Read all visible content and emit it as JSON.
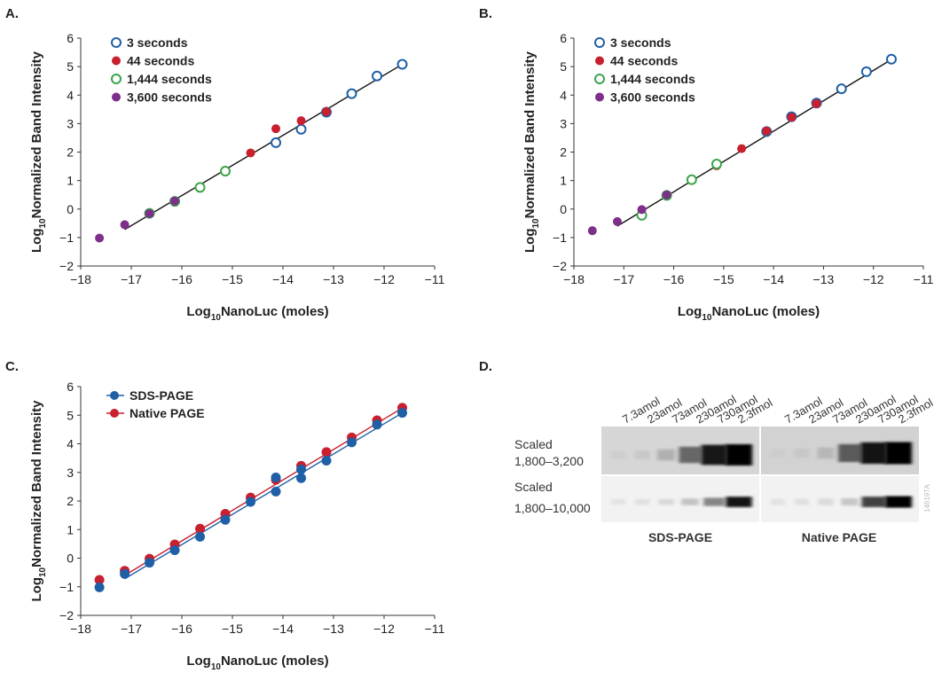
{
  "panels": {
    "A": "A.",
    "B": "B.",
    "C": "C.",
    "D": "D."
  },
  "colors": {
    "blue": "#1f5fa6",
    "red": "#c8202f",
    "green": "#3aa54a",
    "purple": "#7d2f8a",
    "fit_line": "#111111"
  },
  "chart_data": [
    {
      "id": "A",
      "type": "scatter",
      "xlabel": "NanoLuc (moles)",
      "xlabel_prefix": "Log",
      "xlabel_sub": "10",
      "ylabel": "Normalized Band Intensity",
      "ylabel_prefix": "Log",
      "ylabel_sub": "10",
      "xlim": [
        -18,
        -11
      ],
      "ylim": [
        -2,
        6
      ],
      "xticks": [
        -18,
        -17,
        -16,
        -15,
        -14,
        -13,
        -12,
        -11
      ],
      "yticks": [
        -2,
        -1,
        0,
        1,
        2,
        3,
        4,
        5,
        6
      ],
      "xtick_labels": [
        "−18",
        "−17",
        "−16",
        "−15",
        "−14",
        "−13",
        "−12",
        "−11"
      ],
      "ytick_labels": [
        "−2",
        "−1",
        "0",
        "1",
        "2",
        "3",
        "4",
        "5",
        "6"
      ],
      "legend_position": "top-left",
      "fit_lines": [
        {
          "x": [
            -17.13,
            -11.64
          ],
          "y": [
            -0.72,
            5.08
          ],
          "color": "#111111"
        }
      ],
      "series": [
        {
          "name": "3 seconds",
          "marker": "open",
          "color": "#1f5fa6",
          "points": [
            [
              -11.64,
              5.08
            ],
            [
              -12.14,
              4.67
            ],
            [
              -12.64,
              4.05
            ],
            [
              -13.14,
              3.4
            ],
            [
              -13.64,
              2.8
            ],
            [
              -14.14,
              2.33
            ]
          ]
        },
        {
          "name": "44 seconds",
          "marker": "filled",
          "color": "#c8202f",
          "points": [
            [
              -13.14,
              3.42
            ],
            [
              -13.64,
              3.1
            ],
            [
              -14.14,
              2.82
            ],
            [
              -14.64,
              1.97
            ],
            [
              -15.14,
              1.35
            ],
            [
              -15.64,
              0.74
            ]
          ]
        },
        {
          "name": "1,444 seconds",
          "marker": "open",
          "color": "#3aa54a",
          "points": [
            [
              -15.14,
              1.33
            ],
            [
              -15.64,
              0.76
            ],
            [
              -16.14,
              0.27
            ],
            [
              -16.64,
              -0.15
            ]
          ]
        },
        {
          "name": "3,600 seconds",
          "marker": "filled",
          "color": "#7d2f8a",
          "points": [
            [
              -16.14,
              0.28
            ],
            [
              -16.64,
              -0.16
            ],
            [
              -17.13,
              -0.55
            ],
            [
              -17.63,
              -1.02
            ]
          ]
        }
      ]
    },
    {
      "id": "B",
      "type": "scatter",
      "xlabel": "NanoLuc (moles)",
      "xlabel_prefix": "Log",
      "xlabel_sub": "10",
      "ylabel": "Normalized Band Intensity",
      "ylabel_prefix": "Log",
      "ylabel_sub": "10",
      "xlim": [
        -18,
        -11
      ],
      "ylim": [
        -2,
        6
      ],
      "xticks": [
        -18,
        -17,
        -16,
        -15,
        -14,
        -13,
        -12,
        -11
      ],
      "yticks": [
        -2,
        -1,
        0,
        1,
        2,
        3,
        4,
        5,
        6
      ],
      "xtick_labels": [
        "−18",
        "−17",
        "−16",
        "−15",
        "−14",
        "−13",
        "−12",
        "−11"
      ],
      "ytick_labels": [
        "−2",
        "−1",
        "0",
        "1",
        "2",
        "3",
        "4",
        "5",
        "6"
      ],
      "legend_position": "top-left",
      "fit_lines": [
        {
          "x": [
            -17.13,
            -11.64
          ],
          "y": [
            -0.6,
            5.25
          ],
          "color": "#111111"
        }
      ],
      "series": [
        {
          "name": "3 seconds",
          "marker": "open",
          "color": "#1f5fa6",
          "points": [
            [
              -11.64,
              5.26
            ],
            [
              -12.14,
              4.82
            ],
            [
              -12.64,
              4.22
            ],
            [
              -13.14,
              3.72
            ],
            [
              -13.64,
              3.24
            ],
            [
              -14.14,
              2.72
            ]
          ]
        },
        {
          "name": "44 seconds",
          "marker": "filled",
          "color": "#c8202f",
          "points": [
            [
              -13.14,
              3.7
            ],
            [
              -13.64,
              3.22
            ],
            [
              -14.14,
              2.74
            ],
            [
              -14.64,
              2.12
            ],
            [
              -15.14,
              1.52
            ]
          ]
        },
        {
          "name": "1,444 seconds",
          "marker": "open",
          "color": "#3aa54a",
          "points": [
            [
              -15.14,
              1.58
            ],
            [
              -15.64,
              1.03
            ],
            [
              -16.14,
              0.48
            ],
            [
              -16.64,
              -0.22
            ]
          ]
        },
        {
          "name": "3,600 seconds",
          "marker": "filled",
          "color": "#7d2f8a",
          "points": [
            [
              -16.14,
              0.5
            ],
            [
              -16.64,
              -0.02
            ],
            [
              -17.13,
              -0.44
            ],
            [
              -17.63,
              -0.76
            ]
          ]
        }
      ]
    },
    {
      "id": "C",
      "type": "line",
      "xlabel": "NanoLuc (moles)",
      "xlabel_prefix": "Log",
      "xlabel_sub": "10",
      "ylabel": "Normalized Band Intensity",
      "ylabel_prefix": "Log",
      "ylabel_sub": "10",
      "xlim": [
        -18,
        -11
      ],
      "ylim": [
        -2,
        6
      ],
      "xticks": [
        -18,
        -17,
        -16,
        -15,
        -14,
        -13,
        -12,
        -11
      ],
      "yticks": [
        -2,
        -1,
        0,
        1,
        2,
        3,
        4,
        5,
        6
      ],
      "xtick_labels": [
        "−18",
        "−17",
        "−16",
        "−15",
        "−14",
        "−13",
        "−12",
        "−11"
      ],
      "ytick_labels": [
        "−2",
        "−1",
        "0",
        "1",
        "2",
        "3",
        "4",
        "5",
        "6"
      ],
      "legend_position": "top-left",
      "fit_lines": [
        {
          "x": [
            -17.13,
            -11.64
          ],
          "y": [
            -0.72,
            5.08
          ],
          "color": "#1f5fa6"
        },
        {
          "x": [
            -17.13,
            -11.64
          ],
          "y": [
            -0.6,
            5.25
          ],
          "color": "#c8202f"
        }
      ],
      "series": [
        {
          "name": "Native PAGE",
          "marker": "filled",
          "color": "#c8202f",
          "points": [
            [
              -17.63,
              -0.76
            ],
            [
              -17.13,
              -0.44
            ],
            [
              -16.64,
              -0.02
            ],
            [
              -16.14,
              0.48
            ],
            [
              -15.64,
              1.03
            ],
            [
              -15.14,
              1.55
            ],
            [
              -14.64,
              2.12
            ],
            [
              -14.14,
              2.74
            ],
            [
              -13.64,
              3.23
            ],
            [
              -13.14,
              3.71
            ],
            [
              -12.64,
              4.22
            ],
            [
              -12.14,
              4.82
            ],
            [
              -11.64,
              5.26
            ]
          ]
        },
        {
          "name": "SDS-PAGE",
          "marker": "filled",
          "color": "#1f5fa6",
          "points": [
            [
              -17.63,
              -1.02
            ],
            [
              -17.13,
              -0.55
            ],
            [
              -16.64,
              -0.16
            ],
            [
              -16.14,
              0.28
            ],
            [
              -15.64,
              0.75
            ],
            [
              -15.14,
              1.34
            ],
            [
              -14.64,
              1.97
            ],
            [
              -14.14,
              2.33
            ],
            [
              -14.14,
              2.82
            ],
            [
              -13.64,
              2.8
            ],
            [
              -13.64,
              3.1
            ],
            [
              -13.14,
              3.41
            ],
            [
              -12.64,
              4.05
            ],
            [
              -12.14,
              4.67
            ],
            [
              -11.64,
              5.08
            ]
          ]
        }
      ],
      "legend_order": [
        "SDS-PAGE",
        "Native PAGE"
      ]
    }
  ],
  "gel": {
    "lane_labels": [
      "7.3amol",
      "23amol",
      "73amol",
      "230amol",
      "730amol",
      "2.3fmol"
    ],
    "row_labels": [
      {
        "line1": "Scaled",
        "line2": "1,800–3,200"
      },
      {
        "line1": "Scaled",
        "line2": "1,800–10,000"
      }
    ],
    "gel_titles": [
      "SDS-PAGE",
      "Native PAGE"
    ],
    "watermark": "14619TA",
    "band_intensity": {
      "sds_top": [
        0.04,
        0.1,
        0.28,
        0.65,
        0.92,
        1.0
      ],
      "native_top": [
        0.03,
        0.08,
        0.22,
        0.7,
        0.95,
        1.0
      ],
      "sds_bottom": [
        0.02,
        0.04,
        0.1,
        0.25,
        0.55,
        0.95
      ],
      "native_bottom": [
        0.01,
        0.03,
        0.08,
        0.22,
        0.8,
        1.0
      ]
    }
  }
}
